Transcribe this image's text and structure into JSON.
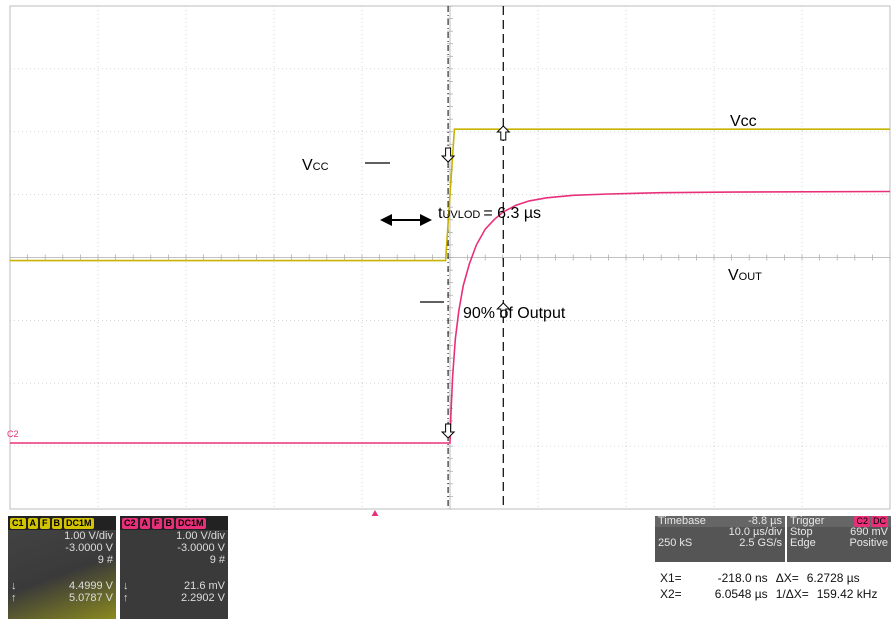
{
  "chart_data": {
    "type": "line",
    "title": "",
    "xlabel": "",
    "ylabel": "",
    "grid": true,
    "x_divisions": 10,
    "y_divisions": 8,
    "xlim_us": [
      -50,
      50
    ],
    "series": [
      {
        "name": "Vcc",
        "color": "#c8b400",
        "x_us": [
          -50,
          -0.5,
          0.5,
          50
        ],
        "y_div": [
          -0.05,
          -0.05,
          2.04,
          2.04
        ]
      },
      {
        "name": "VOUT",
        "color": "#e8307a",
        "x_us": [
          -50,
          0,
          0.1,
          0.3,
          0.6,
          1.0,
          1.5,
          2.2,
          3.0,
          4.0,
          5.0,
          6.0,
          7.5,
          9,
          11,
          14,
          18,
          24,
          32,
          50
        ],
        "y_div": [
          -2.95,
          -2.95,
          -2.5,
          -1.9,
          -1.3,
          -0.85,
          -0.45,
          -0.1,
          0.2,
          0.45,
          0.6,
          0.72,
          0.83,
          0.9,
          0.95,
          0.99,
          1.01,
          1.03,
          1.04,
          1.05
        ]
      }
    ],
    "cursors": {
      "x1_us": -0.218,
      "x2_us": 6.0548
    },
    "annotations": {
      "vcc_left": "V",
      "vcc_left_sub": "CC",
      "vcc_right": "Vcc",
      "vout_main": "V",
      "vout_sub": "OUT",
      "t_main": "t",
      "t_sub": "UVLOD",
      "t_value": "= 6.3 µs",
      "output90": "90% of Output",
      "c2_marker": "C2"
    }
  },
  "channels": [
    {
      "id": "C1",
      "color": "#d4c400",
      "tags": [
        "A",
        "F",
        "B",
        "DC1M"
      ],
      "scale": "1.00 V/div",
      "offset": "-3.0000 V",
      "count": "9 #",
      "min_sym": "↓",
      "min": "4.4999 V",
      "max_sym": "↑",
      "max": "5.0787 V"
    },
    {
      "id": "C2",
      "color": "#e8307a",
      "tags": [
        "A",
        "F",
        "B",
        "DC1M"
      ],
      "scale": "1.00 V/div",
      "offset": "-3.0000 V",
      "count": "9 #",
      "min_sym": "↓",
      "min": "21.6 mV",
      "max_sym": "↑",
      "max": "2.2902 V"
    }
  ],
  "timebase": {
    "label": "Timebase",
    "delay": "-8.8 µs",
    "per_div": "10.0 µs/div",
    "samples": "250 kS",
    "rate": "2.5 GS/s"
  },
  "trigger": {
    "label": "Trigger",
    "source": "C2",
    "coupling": "DC",
    "mode": "Stop",
    "level": "690 mV",
    "type": "Edge",
    "slope": "Positive"
  },
  "cursors_readout": {
    "x1_label": "X1=",
    "x1": "-218.0 ns",
    "dx_label": "ΔX=",
    "dx": "6.2728 µs",
    "x2_label": "X2=",
    "x2": "6.0548 µs",
    "inv_dx_label": "1/ΔX=",
    "inv_dx": "159.42 kHz"
  }
}
